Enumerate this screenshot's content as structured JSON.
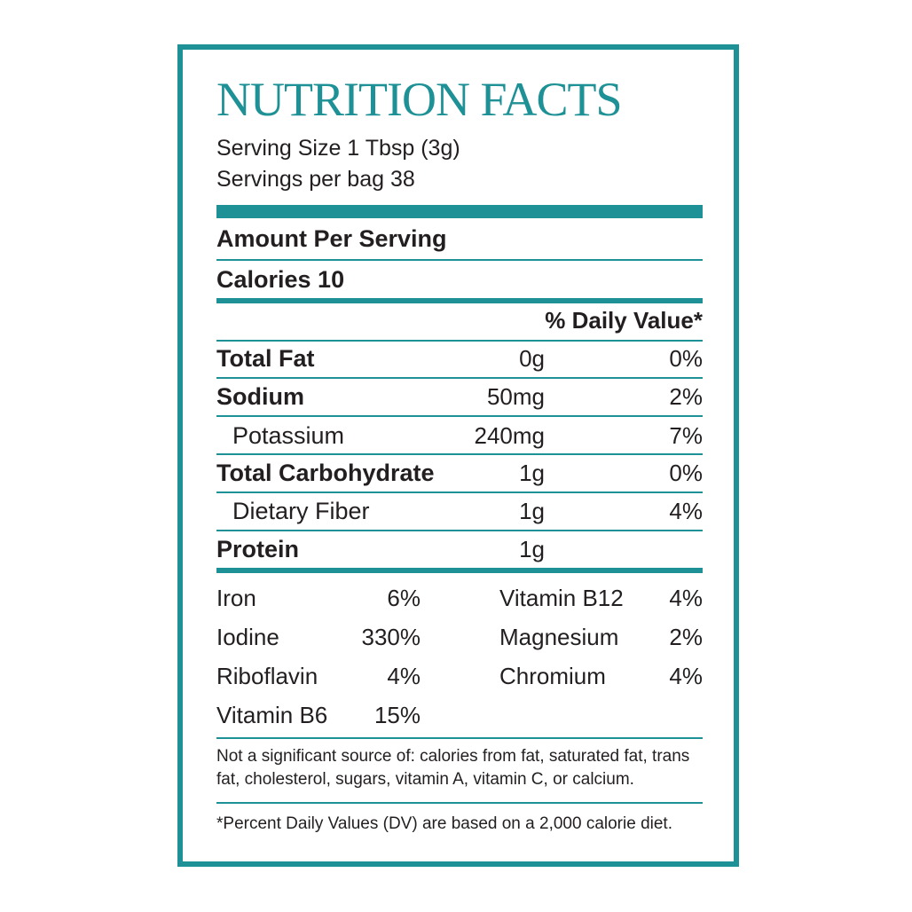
{
  "title": "NUTRITION FACTS",
  "serving_size": "Serving Size 1 Tbsp (3g)",
  "servings_per_bag": "Servings per bag 38",
  "amount_per_serving": "Amount Per Serving",
  "calories": "Calories 10",
  "daily_value_header": "% Daily Value*",
  "nutrients": [
    {
      "name": "Total Fat",
      "amount": "0g",
      "dv": "0%"
    },
    {
      "name": "Sodium",
      "amount": "50mg",
      "dv": "2%"
    },
    {
      "name": "Potassium",
      "amount": "240mg",
      "dv": "7%"
    },
    {
      "name": "Total Carbohydrate",
      "amount": "1g",
      "dv": "0%"
    },
    {
      "name": "Dietary Fiber",
      "amount": "1g",
      "dv": "4%"
    },
    {
      "name": "Protein",
      "amount": "1g",
      "dv": ""
    }
  ],
  "vitamins_left": [
    {
      "name": "Iron",
      "value": "6%"
    },
    {
      "name": "Iodine",
      "value": "330%"
    },
    {
      "name": "Riboflavin",
      "value": "4%"
    },
    {
      "name": "Vitamin B6",
      "value": "15%"
    }
  ],
  "vitamins_right": [
    {
      "name": "Vitamin B12",
      "value": "4%"
    },
    {
      "name": "Magnesium",
      "value": "2%"
    },
    {
      "name": "Chromium",
      "value": "4%"
    }
  ],
  "not_significant": "Not a significant source of: calories from fat, saturated fat, trans fat, cholesterol, sugars, vitamin A, vitamin C, or calcium.",
  "footnote": "*Percent Daily Values (DV) are based on a 2,000 calorie diet.",
  "colors": {
    "accent": "#1e9196",
    "text": "#231f20"
  }
}
